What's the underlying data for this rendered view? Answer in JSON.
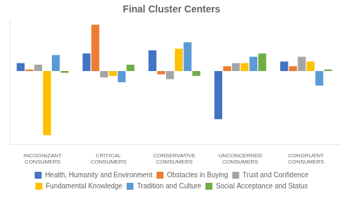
{
  "chart_data": {
    "type": "bar",
    "title": "Final Cluster Centers",
    "categories": [
      "INCOGNIZANT\nCONSUMERS",
      "CRITICAL\nCONSUMERS",
      "CONSERVATIVE\nCOMSUMERS",
      "UNCONCERNED\nCONSUMERS",
      "CONGRUENT\nCONSUMERS"
    ],
    "series": [
      {
        "name": "Health, Humanity and Environment",
        "color": "#4472C4",
        "values": [
          0.25,
          0.55,
          0.65,
          -1.5,
          0.3
        ]
      },
      {
        "name": "Obstacles in Buying",
        "color": "#ED7D31",
        "values": [
          0.05,
          1.45,
          -0.1,
          0.15,
          0.15
        ]
      },
      {
        "name": "Trust and Confidence",
        "color": "#A5A5A5",
        "values": [
          0.2,
          -0.2,
          -0.25,
          0.25,
          0.45
        ]
      },
      {
        "name": "Fundamental Knowledge",
        "color": "#FFC000",
        "values": [
          -2.0,
          -0.15,
          0.7,
          0.25,
          0.3
        ]
      },
      {
        "name": "Tradition and Culture",
        "color": "#5B9BD5",
        "values": [
          0.5,
          -0.35,
          0.9,
          0.45,
          -0.45
        ]
      },
      {
        "name": "Social Acceptance and Status",
        "color": "#70AD47",
        "values": [
          -0.05,
          0.2,
          -0.15,
          0.55,
          0.05
        ]
      }
    ],
    "ylim": [
      -2.3,
      1.6
    ],
    "yticks": [],
    "grid": false,
    "legend": "bottom",
    "tick_labels": "x"
  }
}
